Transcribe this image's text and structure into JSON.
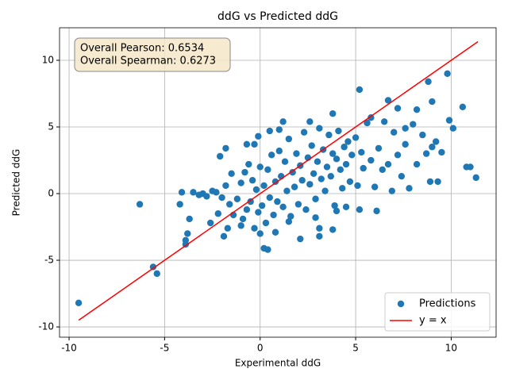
{
  "chart_data": {
    "type": "scatter",
    "title": "ddG vs Predicted ddG",
    "x_label": "Experimental ddG",
    "y_label": "Predicted ddG",
    "xlim": [
      -10.5,
      12.35
    ],
    "ylim": [
      -10.77,
      12.44
    ],
    "xticks": [
      -10,
      -5,
      0,
      5,
      10
    ],
    "yticks": [
      -10,
      -5,
      0,
      5,
      10
    ],
    "grid": true,
    "legend_location": "lower right",
    "annotations": [
      "Overall Pearson: 0.6534",
      "Overall Spearman: 0.6273"
    ],
    "series": [
      {
        "name": "Predictions",
        "color": "#1f77b4",
        "type": "scatter",
        "x": [
          -9.5,
          -6.3,
          -5.6,
          -5.4,
          -3.9,
          -3.9,
          -3.8,
          -4.1,
          -4.2,
          -3.7,
          10.6,
          11.3,
          10.8,
          11.0,
          9.8,
          9.3,
          8.9,
          5.2,
          9.0,
          9.9,
          10.1,
          6.7,
          8.8,
          6.1,
          5.2,
          0.2,
          0.4,
          2.1,
          3.1,
          3.1,
          3.8,
          -1.9,
          -2.6,
          -1.8,
          -2.1,
          -0.7,
          -0.3,
          -0.1,
          1.2,
          2.6,
          3.8,
          5.8,
          7.2,
          8.2,
          7.6,
          -3.5,
          -3.2,
          -3.0,
          -2.8,
          -2.5,
          -2.3,
          -2.0,
          -1.8,
          -1.6,
          -1.5,
          -1.4,
          -1.2,
          -1.0,
          -0.9,
          -0.8,
          -0.7,
          -0.6,
          -0.5,
          -0.4,
          -0.3,
          -0.2,
          -0.1,
          0.0,
          0.1,
          0.2,
          0.3,
          0.4,
          0.5,
          0.6,
          0.7,
          0.8,
          0.9,
          1.0,
          1.1,
          1.2,
          1.3,
          1.4,
          1.5,
          1.6,
          1.7,
          1.8,
          1.9,
          2.0,
          2.1,
          2.2,
          2.3,
          2.4,
          2.5,
          2.6,
          2.7,
          2.8,
          2.9,
          3.0,
          3.1,
          3.2,
          3.3,
          3.4,
          3.5,
          3.6,
          3.7,
          3.8,
          3.9,
          4.0,
          4.1,
          4.2,
          4.3,
          4.4,
          4.5,
          4.6,
          4.7,
          4.8,
          5.0,
          5.1,
          5.3,
          5.4,
          5.6,
          5.8,
          6.0,
          6.2,
          6.4,
          6.5,
          6.7,
          6.9,
          7.0,
          7.2,
          7.4,
          7.6,
          7.8,
          8.0,
          8.2,
          8.5,
          8.7,
          9.0,
          9.2,
          9.5,
          -1.0,
          -1.7,
          -2.2,
          0.8,
          1.5,
          2.9,
          0.5,
          1.0,
          0.0,
          4.0,
          4.5
        ],
        "values": [
          -8.2,
          -0.8,
          -5.5,
          -6.0,
          -3.8,
          -3.5,
          -3.0,
          0.1,
          -0.8,
          -1.9,
          6.5,
          1.2,
          2.0,
          2.0,
          9.0,
          0.9,
          0.9,
          7.8,
          6.9,
          5.5,
          4.9,
          7.0,
          8.4,
          -1.3,
          -1.2,
          -4.1,
          -4.2,
          -3.4,
          -3.2,
          -2.6,
          -2.7,
          -3.2,
          -2.2,
          3.4,
          2.8,
          3.7,
          3.7,
          4.3,
          5.4,
          5.4,
          6.0,
          5.7,
          6.4,
          6.3,
          4.9,
          0.1,
          -0.1,
          0.0,
          -0.2,
          0.2,
          0.1,
          -0.3,
          0.6,
          -0.8,
          1.5,
          -1.6,
          -0.4,
          0.8,
          -1.9,
          1.6,
          -1.2,
          2.2,
          -0.6,
          1.0,
          -2.6,
          0.3,
          -1.4,
          2.0,
          -0.9,
          0.6,
          -2.2,
          1.8,
          -0.3,
          2.9,
          -1.6,
          0.9,
          -0.6,
          3.2,
          1.3,
          -1.0,
          2.4,
          0.2,
          4.1,
          -1.7,
          1.6,
          0.5,
          3.0,
          -0.8,
          2.1,
          1.0,
          4.6,
          -1.2,
          2.7,
          0.7,
          3.6,
          1.5,
          -0.4,
          2.4,
          4.9,
          1.1,
          3.3,
          0.2,
          2.0,
          4.4,
          1.3,
          3.0,
          -0.9,
          2.6,
          4.7,
          1.8,
          0.4,
          3.5,
          2.2,
          3.9,
          0.9,
          2.9,
          4.2,
          0.6,
          3.1,
          1.9,
          5.3,
          2.5,
          0.5,
          3.4,
          1.8,
          5.4,
          2.2,
          0.2,
          4.6,
          2.9,
          1.3,
          3.7,
          0.4,
          5.2,
          2.2,
          4.4,
          3.0,
          3.5,
          3.9,
          3.1,
          -2.4,
          -2.6,
          -1.5,
          -2.9,
          -2.1,
          -1.8,
          4.7,
          4.8,
          -3.0,
          -1.3,
          -1.0
        ]
      },
      {
        "name": "y = x",
        "color": "#ff0000",
        "type": "line",
        "x": [
          -9.5,
          11.4
        ],
        "values": [
          -9.5,
          11.4
        ]
      }
    ]
  }
}
